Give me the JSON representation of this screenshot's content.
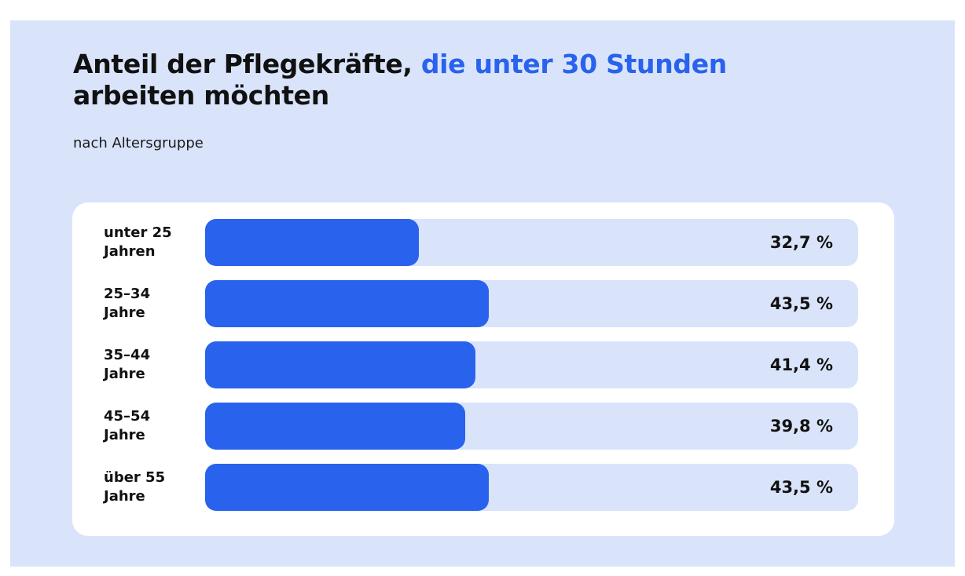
{
  "title": {
    "part1": "Anteil der Pflegekräfte, ",
    "highlight": "die unter 30 Stunden",
    "part2": "arbeiten möchten"
  },
  "subtitle": "nach Altersgruppe",
  "colors": {
    "background": "#d9e4fb",
    "card": "#ffffff",
    "bar": "#2962ec",
    "track": "#d9e4fb",
    "highlight_text": "#2962ec"
  },
  "chart_data": {
    "type": "bar",
    "orientation": "horizontal",
    "title": "Anteil der Pflegekräfte, die unter 30 Stunden arbeiten möchten",
    "subtitle": "nach Altersgruppe",
    "unit": "%",
    "xlim": [
      0,
      100
    ],
    "grid": false,
    "categories": [
      [
        "unter 25",
        "Jahren"
      ],
      [
        "25–34",
        "Jahre"
      ],
      [
        "35–44",
        "Jahre"
      ],
      [
        "45–54",
        "Jahre"
      ],
      [
        "über 55",
        "Jahre"
      ]
    ],
    "values": [
      32.7,
      43.5,
      41.4,
      39.8,
      43.5
    ],
    "value_labels": [
      "32,7 %",
      "43,5 %",
      "41,4 %",
      "39,8 %",
      "43,5 %"
    ]
  }
}
